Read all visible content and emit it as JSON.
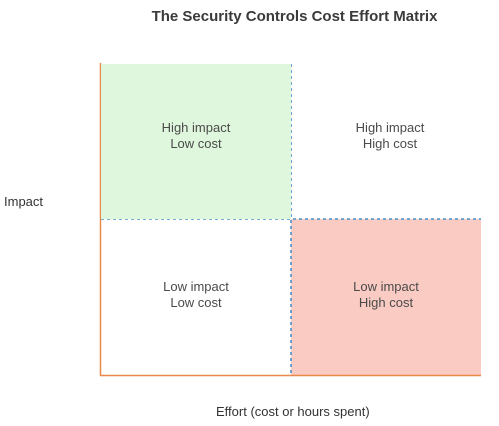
{
  "title": "The Security Controls Cost Effort Matrix",
  "axes": {
    "y_label": "Impact",
    "x_label": "Effort (cost or hours spent)"
  },
  "quadrants": {
    "top_left": {
      "line1": "High impact",
      "line2": "Low cost"
    },
    "top_right": {
      "line1": "High impact",
      "line2": "High cost"
    },
    "bottom_left": {
      "line1": "Low impact",
      "line2": "Low cost"
    },
    "bottom_right": {
      "line1": "Low impact",
      "line2": "High cost"
    }
  },
  "colors": {
    "axis": "#e8894a",
    "divider": "#4a90c8",
    "high_impact_low_cost_fill": "#dff7dd",
    "low_impact_high_cost_fill": "#f9cbc3"
  }
}
